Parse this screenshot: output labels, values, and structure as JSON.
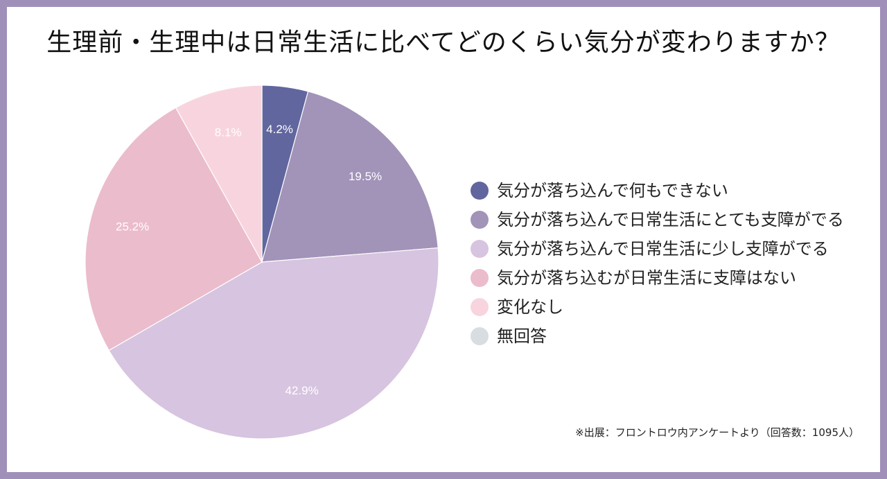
{
  "chart_data": {
    "type": "pie",
    "title": "生理前・生理中は日常生活に比べてどのくらい気分が変わりますか？",
    "slices": [
      {
        "label": "気分が落ち込んで何もできない",
        "value": 4.2,
        "value_label": "4.2%",
        "color": "#61669e"
      },
      {
        "label": "気分が落ち込んで日常生活にとても支障がでる",
        "value": 19.5,
        "value_label": "19.5%",
        "color": "#a293b9"
      },
      {
        "label": "気分が落ち込んで日常生活に少し支障がでる",
        "value": 42.9,
        "value_label": "42.9%",
        "color": "#d7c4e0"
      },
      {
        "label": "気分が落ち込むが日常生活に支障はない",
        "value": 25.2,
        "value_label": "25.2%",
        "color": "#ebbccc"
      },
      {
        "label": "変化なし",
        "value": 8.1,
        "value_label": "8.1%",
        "color": "#f8d5de"
      },
      {
        "label": "無回答",
        "value": 0,
        "value_label": "",
        "color": "#d7dde0"
      }
    ],
    "legend_placement": "right",
    "start_angle": "top",
    "direction": "clockwise"
  },
  "source_note": "※出展：フロントロウ内アンケートより（回答数：1095人）"
}
